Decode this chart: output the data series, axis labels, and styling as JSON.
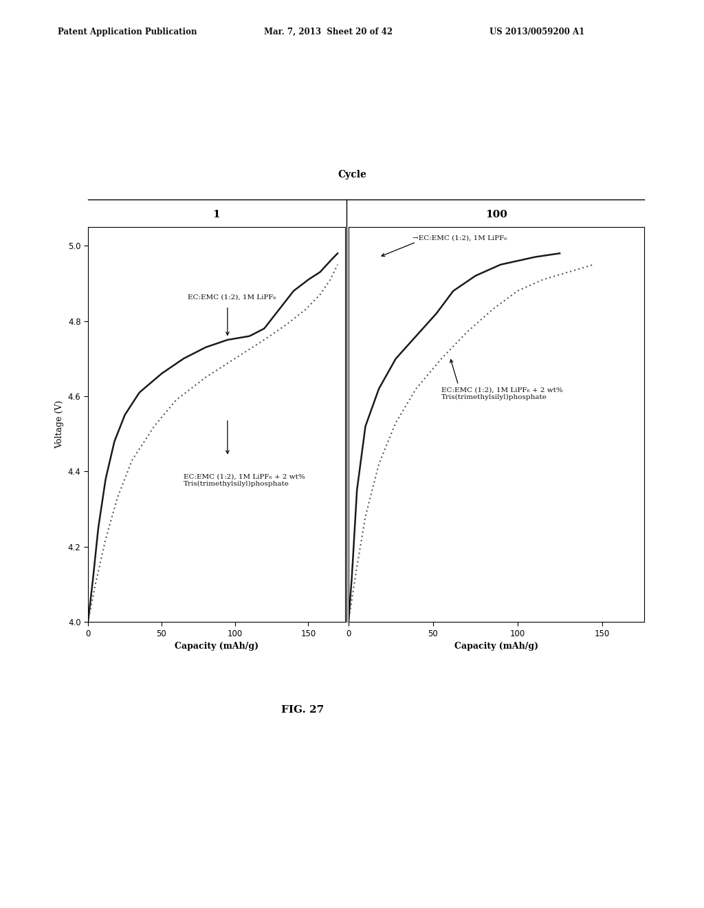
{
  "title_header": "Patent Application Publication",
  "title_date": "Mar. 7, 2013  Sheet 20 of 42",
  "title_patent": "US 2013/0059200 A1",
  "fig_label": "FIG. 27",
  "cycle_label": "Cycle",
  "cycle1_label": "1",
  "cycle100_label": "100",
  "ylabel": "Voltage (V)",
  "xlabel": "Capacity (mAh/g)",
  "ylim": [
    4.0,
    5.05
  ],
  "yticks": [
    4.0,
    4.2,
    4.4,
    4.6,
    4.8,
    5.0
  ],
  "xticks": [
    0,
    50,
    100,
    150
  ],
  "label_solid_left": "EC:EMC (1:2), 1M LiPF₆",
  "label_dotted_left": "EC:EMC (1:2), 1M LiPF₆ + 2 wt%\nTris(trimethylsilyl)phosphate",
  "label_solid_right": "→EC:EMC (1:2), 1M LiPF₆",
  "label_dotted_right": "EC:EMC (1:2), 1M LiPF₆ + 2 wt%\nTris(trimethylsilyl)phosphate",
  "bg_color": "#ffffff",
  "line_color_solid": "#1a1a1a",
  "line_color_dotted": "#555555",
  "text_color": "#222222"
}
